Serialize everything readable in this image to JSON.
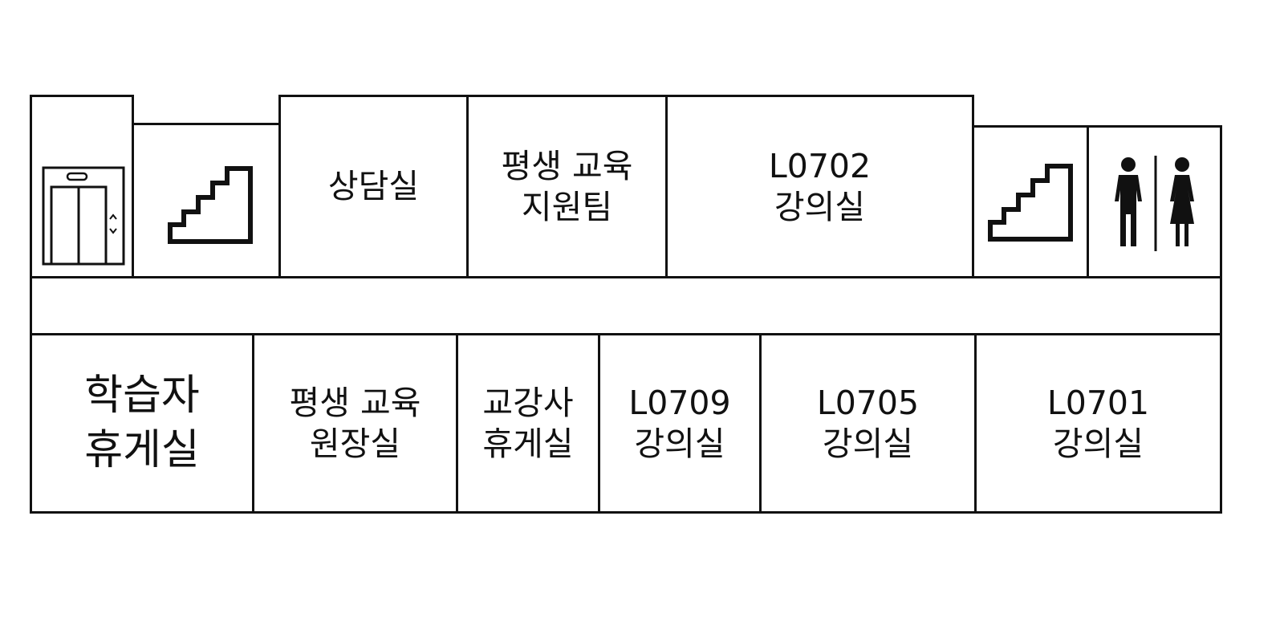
{
  "floor_plan": {
    "top_row": {
      "elevator": {
        "icon": "elevator-icon"
      },
      "stairs_left": {
        "icon": "stairs-icon"
      },
      "counseling": {
        "line1": "상담실"
      },
      "lifelong_support": {
        "line1": "평생 교육",
        "line2": "지원팀"
      },
      "l0702": {
        "line1": "L0702",
        "line2": "강의실"
      },
      "stairs_right": {
        "icon": "stairs-icon"
      },
      "restroom": {
        "icon": "restroom-icon"
      }
    },
    "corridor": {
      "label": ""
    },
    "bottom_row": {
      "learner_lounge": {
        "line1": "학습자",
        "line2": "휴게실"
      },
      "director_office": {
        "line1": "평생 교육",
        "line2": "원장실"
      },
      "instructor_lounge": {
        "line1": "교강사",
        "line2": "휴게실"
      },
      "l0709": {
        "line1": "L0709",
        "line2": "강의실"
      },
      "l0705": {
        "line1": "L0705",
        "line2": "강의실"
      },
      "l0701": {
        "line1": "L0701",
        "line2": "강의실"
      }
    }
  }
}
